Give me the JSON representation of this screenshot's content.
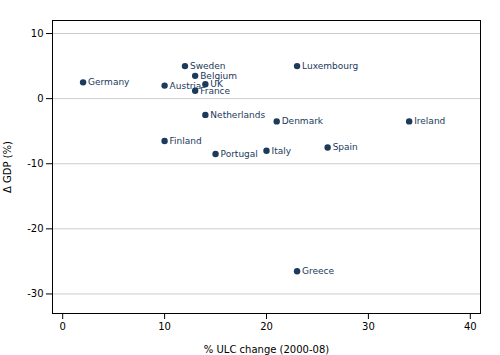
{
  "chart_data": {
    "type": "scatter",
    "labels": [
      "Germany",
      "Austria",
      "Sweden",
      "Belgium",
      "France",
      "UK",
      "Luxembourg",
      "Netherlands",
      "Denmark",
      "Ireland",
      "Finland",
      "Portugal",
      "Italy",
      "Spain",
      "Greece"
    ],
    "x": [
      2,
      10,
      12,
      13,
      13,
      14,
      23,
      14,
      21,
      34,
      10,
      15,
      20,
      26,
      23
    ],
    "values": [
      2.5,
      2.0,
      5.0,
      3.5,
      1.2,
      2.2,
      5.0,
      -2.5,
      -3.5,
      -3.5,
      -6.5,
      -8.5,
      -8.0,
      -7.5,
      -26.5
    ],
    "color": "#1b3a5c",
    "xlabel": "% ULC change (2000-08)",
    "ylabel": "Δ GDP (%)",
    "xlim": [
      -1,
      41
    ],
    "ylim": [
      -33,
      12
    ],
    "xticks": [
      0,
      10,
      20,
      30,
      40
    ],
    "yticks": [
      10,
      0,
      -10,
      -20,
      -30
    ],
    "grid": "y"
  }
}
